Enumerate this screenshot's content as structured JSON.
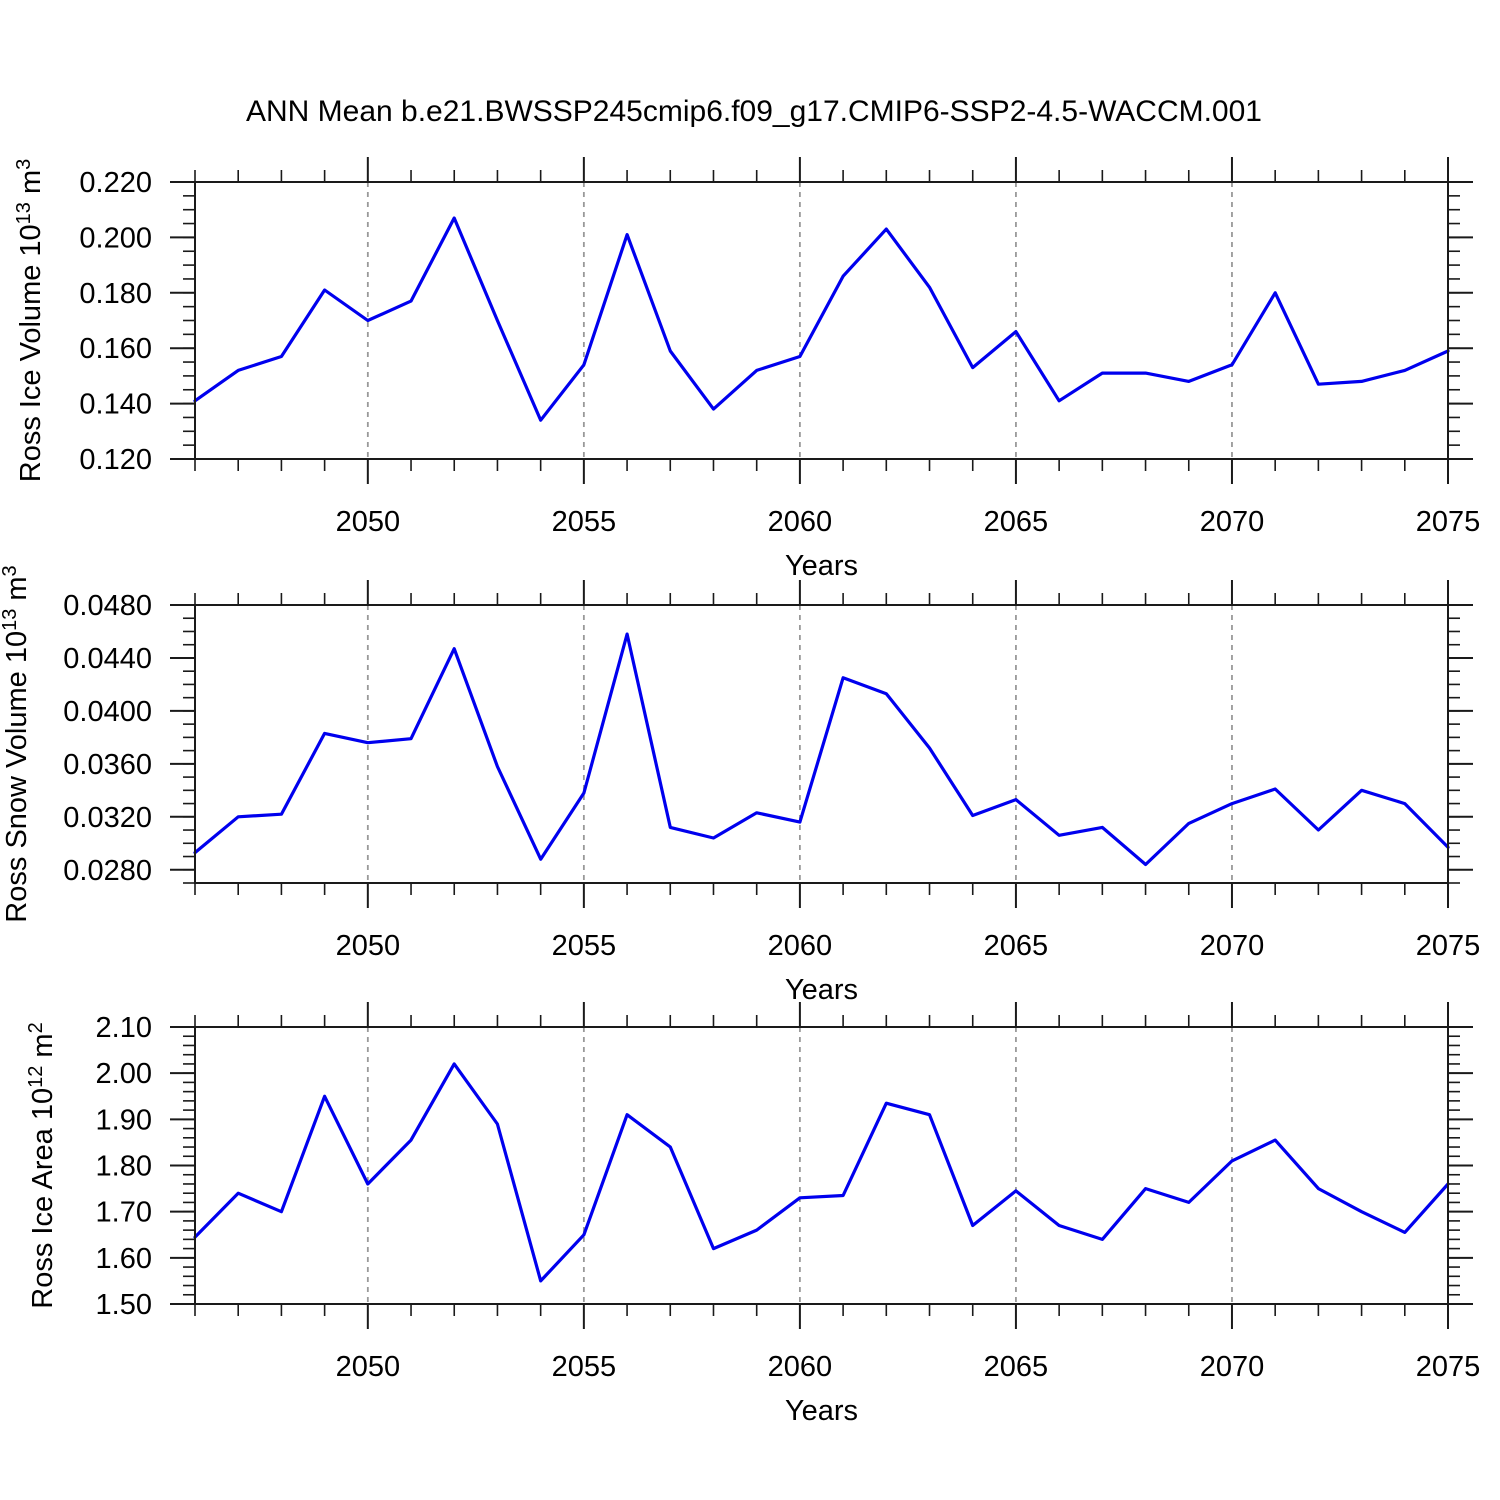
{
  "title": "ANN Mean b.e21.BWSSP245cmip6.f09_g17.CMIP6-SSP2-4.5-WACCM.001",
  "colors": {
    "line": "#0000ee",
    "grid": "#999999",
    "axis": "#1a1a1a",
    "text": "#000000",
    "background": "#ffffff"
  },
  "chart_data": {
    "type": "line",
    "xlabel": "Years",
    "x": [
      2046,
      2047,
      2048,
      2049,
      2050,
      2051,
      2052,
      2053,
      2054,
      2055,
      2056,
      2057,
      2058,
      2059,
      2060,
      2061,
      2062,
      2063,
      2064,
      2065,
      2066,
      2067,
      2068,
      2069,
      2070,
      2071,
      2072,
      2073,
      2074,
      2075
    ],
    "xlim": [
      2046,
      2075
    ],
    "xticks_major": [
      2050,
      2055,
      2060,
      2065,
      2070,
      2075
    ],
    "xticks_minor_step": 1,
    "gridlines_x": [
      2050,
      2055,
      2060,
      2065,
      2070
    ],
    "legend": "none",
    "panels": [
      {
        "id": "ross-ice-volume",
        "ylabel": "Ross Ice Volume 10^13 m^3",
        "ylabel_rich": [
          {
            "text": "Ross Ice Volume 10"
          },
          {
            "text": "13",
            "sup": true
          },
          {
            "text": " m"
          },
          {
            "text": "3",
            "sup": true
          }
        ],
        "values": [
          0.141,
          0.152,
          0.157,
          0.181,
          0.17,
          0.177,
          0.207,
          0.17,
          0.134,
          0.154,
          0.201,
          0.159,
          0.138,
          0.152,
          0.157,
          0.186,
          0.203,
          0.182,
          0.153,
          0.166,
          0.141,
          0.151,
          0.151,
          0.148,
          0.154,
          0.18,
          0.147,
          0.148,
          0.152,
          0.159
        ],
        "ylim": [
          0.12,
          0.22
        ],
        "yticks_major": {
          "start": 0.12,
          "step": 0.02,
          "count": 6,
          "decimals": 3
        },
        "yticks_minor": {
          "start": 0.12,
          "step": 0.005,
          "count": 21
        },
        "ytick_labels": [
          "0.120",
          "0.140",
          "0.160",
          "0.180",
          "0.200",
          "0.220"
        ]
      },
      {
        "id": "ross-snow-volume",
        "ylabel": "Ross Snow Volume 10^13 m^3",
        "ylabel_rich": [
          {
            "text": "Ross Snow Volume 10"
          },
          {
            "text": "13",
            "sup": true
          },
          {
            "text": " m"
          },
          {
            "text": "3",
            "sup": true
          }
        ],
        "values": [
          0.0293,
          0.032,
          0.0322,
          0.0383,
          0.0376,
          0.0379,
          0.0447,
          0.0358,
          0.0288,
          0.0338,
          0.0458,
          0.0312,
          0.0304,
          0.0323,
          0.0316,
          0.0425,
          0.0413,
          0.0372,
          0.0321,
          0.0333,
          0.0306,
          0.0312,
          0.0284,
          0.0315,
          0.033,
          0.0341,
          0.031,
          0.034,
          0.033,
          0.0297
        ],
        "ylim": [
          0.027,
          0.048
        ],
        "yticks_major": {
          "start": 0.028,
          "step": 0.004,
          "count": 6,
          "decimals": 4
        },
        "yticks_minor": {
          "start": 0.027,
          "step": 0.001,
          "count": 22
        },
        "ytick_labels": [
          "0.0280",
          "0.0320",
          "0.0360",
          "0.0400",
          "0.0440",
          "0.0480"
        ]
      },
      {
        "id": "ross-ice-area",
        "ylabel": "Ross Ice Area 10^12 m^2",
        "ylabel_rich": [
          {
            "text": "Ross Ice Area 10"
          },
          {
            "text": "12",
            "sup": true
          },
          {
            "text": " m"
          },
          {
            "text": "2",
            "sup": true
          }
        ],
        "values": [
          1.645,
          1.74,
          1.7,
          1.95,
          1.76,
          1.855,
          2.02,
          1.89,
          1.55,
          1.65,
          1.91,
          1.84,
          1.62,
          1.66,
          1.73,
          1.735,
          1.935,
          1.91,
          1.67,
          1.745,
          1.67,
          1.64,
          1.75,
          1.72,
          1.81,
          1.855,
          1.75,
          1.7,
          1.655,
          1.76
        ],
        "ylim": [
          1.5,
          2.1
        ],
        "yticks_major": {
          "start": 1.5,
          "step": 0.1,
          "count": 7,
          "decimals": 2
        },
        "yticks_minor": {
          "start": 1.5,
          "step": 0.02,
          "count": 31
        },
        "ytick_labels": [
          "1.50",
          "1.60",
          "1.70",
          "1.80",
          "1.90",
          "2.00",
          "2.10"
        ]
      }
    ]
  }
}
